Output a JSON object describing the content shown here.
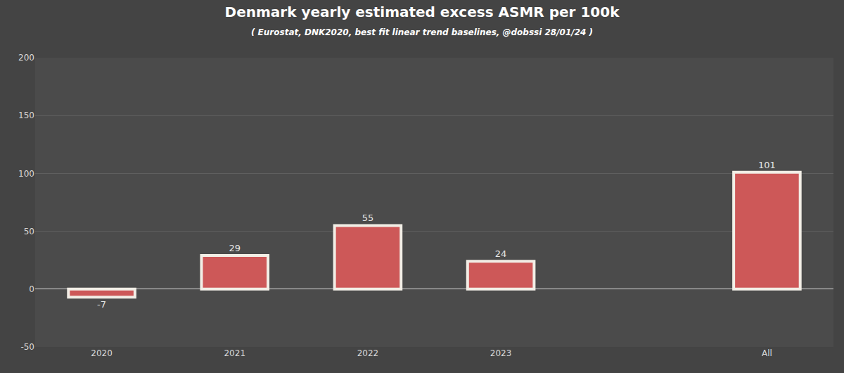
{
  "chart_data": {
    "type": "bar",
    "title": "Denmark yearly estimated excess ASMR per 100k",
    "subtitle": "( Eurostat, DNK2020, best fit linear trend baselines, @dobssi 28/01/24 )",
    "categories": [
      "2020",
      "2021",
      "2022",
      "2023",
      null,
      "All"
    ],
    "values": [
      -7,
      29,
      55,
      24,
      null,
      101
    ],
    "color": "#cd5858",
    "ylim": [
      -50,
      200
    ],
    "yticks": [
      -50,
      0,
      50,
      100,
      150,
      200
    ],
    "grid": true,
    "data_labels": true
  }
}
